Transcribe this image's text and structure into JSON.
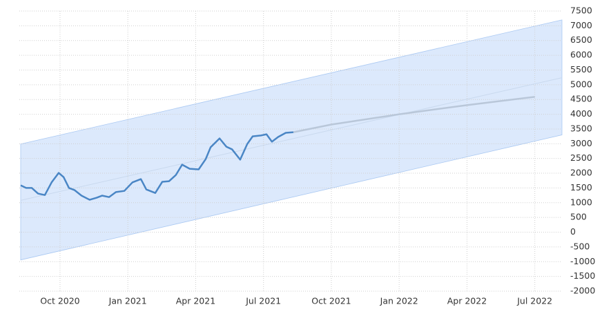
{
  "chart_data": {
    "type": "line",
    "xlim": [
      2020.6,
      2022.6
    ],
    "xticks": [
      {
        "value": 2020.75,
        "label": "Oct 2020"
      },
      {
        "value": 2021.0,
        "label": "Jan 2021"
      },
      {
        "value": 2021.25,
        "label": "Apr 2021"
      },
      {
        "value": 2021.5,
        "label": "Jul 2021"
      },
      {
        "value": 2021.75,
        "label": "Oct 2021"
      },
      {
        "value": 2022.0,
        "label": "Jan 2022"
      },
      {
        "value": 2022.25,
        "label": "Apr 2022"
      },
      {
        "value": 2022.5,
        "label": "Jul 2022"
      }
    ],
    "ylim": [
      -2000,
      7500
    ],
    "yticks": [
      -2000,
      -1500,
      -1000,
      -500,
      0,
      500,
      1000,
      1500,
      2000,
      2500,
      3000,
      3500,
      4000,
      4500,
      5000,
      5500,
      6000,
      6500,
      7000,
      7500
    ],
    "grid": true,
    "band": {
      "color": "#dce9fc",
      "edge_color": "#a9c8f2",
      "x": [
        2020.605,
        2022.6
      ],
      "upper": [
        2990,
        7200
      ],
      "lower": [
        -940,
        3300
      ]
    },
    "series": [
      {
        "color": "#c9d9ee",
        "x": [
          2020.605,
          2022.6
        ],
        "values": [
          1080,
          5240
        ]
      },
      {
        "color": "#b9c7d9",
        "x": [
          2021.61,
          2021.75,
          2022.0,
          2022.25,
          2022.5
        ],
        "values": [
          3390,
          3650,
          4000,
          4310,
          4590
        ]
      },
      {
        "color": "#4a86c5",
        "x": [
          2020.605,
          2020.625,
          2020.646,
          2020.669,
          2020.694,
          2020.719,
          2020.745,
          2020.763,
          2020.783,
          2020.803,
          2020.829,
          2020.859,
          2020.885,
          2020.905,
          2020.931,
          2020.956,
          2020.987,
          2021.017,
          2021.048,
          2021.068,
          2021.101,
          2021.127,
          2021.152,
          2021.177,
          2021.2,
          2021.228,
          2021.261,
          2021.287,
          2021.305,
          2021.338,
          2021.363,
          2021.384,
          2021.414,
          2021.44,
          2021.46,
          2021.49,
          2021.511,
          2021.531,
          2021.554,
          2021.582,
          2021.61
        ],
        "values": [
          1590,
          1500,
          1500,
          1310,
          1260,
          1690,
          2010,
          1870,
          1500,
          1430,
          1240,
          1100,
          1170,
          1240,
          1190,
          1360,
          1400,
          1690,
          1800,
          1450,
          1330,
          1710,
          1730,
          1940,
          2290,
          2150,
          2130,
          2480,
          2880,
          3180,
          2900,
          2810,
          2460,
          2990,
          3250,
          3280,
          3320,
          3070,
          3230,
          3370,
          3390
        ]
      }
    ]
  }
}
